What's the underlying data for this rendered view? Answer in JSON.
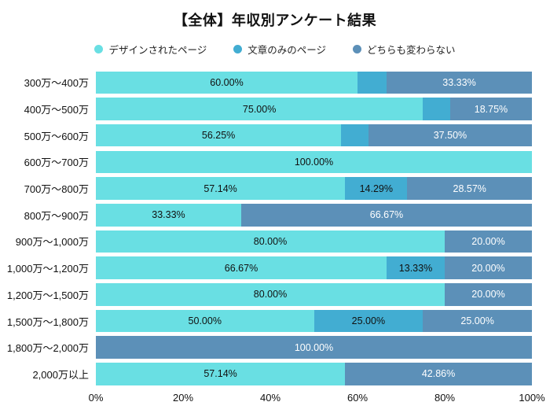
{
  "chart_data": {
    "type": "bar",
    "orientation": "horizontal-stacked",
    "title": "【全体】年収別アンケート結果",
    "legend_position": "top",
    "grid": false,
    "background": "#ffffff",
    "xlim": [
      0,
      100
    ],
    "x_ticks": [
      "0%",
      "20%",
      "40%",
      "60%",
      "80%",
      "100%"
    ],
    "categories": [
      "300万〜400万",
      "400万〜500万",
      "500万〜600万",
      "600万〜700万",
      "700万〜800万",
      "800万〜900万",
      "900万〜1,000万",
      "1,000万〜1,200万",
      "1,200万〜1,500万",
      "1,500万〜1,800万",
      "1,800万〜2,000万",
      "2,000万以上"
    ],
    "series": [
      {
        "name": "デザインされたページ",
        "color": "#69DFE3",
        "label_color": "#111111",
        "values": [
          60.0,
          75.0,
          56.25,
          100.0,
          57.14,
          33.33,
          80.0,
          66.67,
          80.0,
          50.0,
          0,
          57.14
        ]
      },
      {
        "name": "文章のみのページ",
        "color": "#42ADD2",
        "label_color": "#111111",
        "values": [
          6.67,
          6.25,
          6.25,
          0,
          14.29,
          0,
          0,
          13.33,
          0,
          25.0,
          0,
          0
        ]
      },
      {
        "name": "どちらも変わらない",
        "color": "#5C90B8",
        "label_color": "#ffffff",
        "values": [
          33.33,
          18.75,
          37.5,
          0,
          28.57,
          66.67,
          20.0,
          20.0,
          20.0,
          25.0,
          100.0,
          42.86
        ]
      }
    ],
    "segment_labels": [
      [
        "60.00%",
        "",
        "33.33%"
      ],
      [
        "75.00%",
        "",
        "18.75%"
      ],
      [
        "56.25%",
        "",
        "37.50%"
      ],
      [
        "100.00%",
        "",
        ""
      ],
      [
        "57.14%",
        "14.29%",
        "28.57%"
      ],
      [
        "33.33%",
        "",
        "66.67%"
      ],
      [
        "80.00%",
        "",
        "20.00%"
      ],
      [
        "66.67%",
        "13.33%",
        "20.00%"
      ],
      [
        "80.00%",
        "",
        "20.00%"
      ],
      [
        "50.00%",
        "25.00%",
        "25.00%"
      ],
      [
        "",
        "",
        "100.00%"
      ],
      [
        "57.14%",
        "",
        "42.86%"
      ]
    ]
  }
}
